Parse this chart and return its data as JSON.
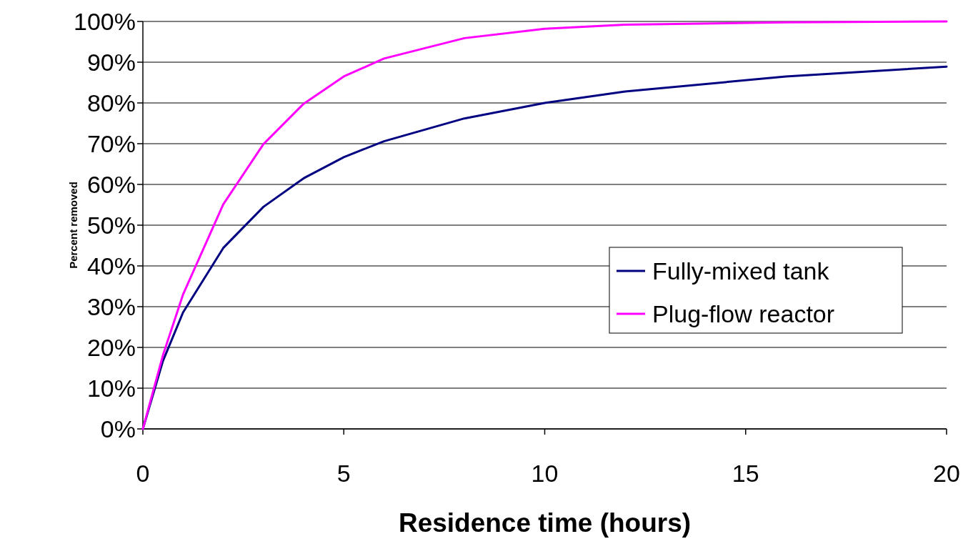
{
  "chart_data": {
    "type": "line",
    "xlabel": "Residence time (hours)",
    "ylabel": "Percent removed",
    "xlim": [
      0,
      20
    ],
    "xticks": [
      0,
      5,
      10,
      15,
      20
    ],
    "ylim": [
      0,
      100
    ],
    "yticks": [
      {
        "value": 0,
        "label": "0%"
      },
      {
        "value": 10,
        "label": "10%"
      },
      {
        "value": 20,
        "label": "20%"
      },
      {
        "value": 30,
        "label": "30%"
      },
      {
        "value": 40,
        "label": "40%"
      },
      {
        "value": 50,
        "label": "50%"
      },
      {
        "value": 60,
        "label": "60%"
      },
      {
        "value": 70,
        "label": "70%"
      },
      {
        "value": 80,
        "label": "80%"
      },
      {
        "value": 90,
        "label": "90%"
      },
      {
        "value": 100,
        "label": "100%"
      }
    ],
    "grid": "y",
    "legend": "right",
    "marker": "none",
    "line_style": "solid",
    "x": [
      0,
      0.5,
      1,
      2,
      3,
      4,
      5,
      6,
      8,
      10,
      12,
      16,
      20
    ],
    "series": [
      {
        "name": "Fully-mixed tank",
        "color": "#000080",
        "values": [
          0,
          16.7,
          28.6,
          44.4,
          54.5,
          61.5,
          66.7,
          70.6,
          76.2,
          80,
          82.8,
          86.5,
          88.9
        ]
      },
      {
        "name": "Plug-flow reactor",
        "color": "#ff00ff",
        "values": [
          0,
          18.1,
          33,
          55.1,
          69.9,
          79.8,
          86.5,
          90.9,
          95.9,
          98.2,
          99.2,
          99.8,
          100
        ]
      }
    ]
  }
}
